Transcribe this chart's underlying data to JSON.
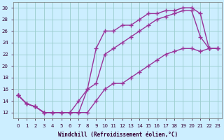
{
  "xlabel": "Windchill (Refroidissement éolien,°C)",
  "xlim": [
    -0.5,
    23.5
  ],
  "ylim": [
    11,
    31
  ],
  "yticks": [
    12,
    14,
    16,
    18,
    20,
    22,
    24,
    26,
    28,
    30
  ],
  "xticks": [
    0,
    1,
    2,
    3,
    4,
    5,
    6,
    7,
    8,
    9,
    10,
    11,
    12,
    13,
    14,
    15,
    16,
    17,
    18,
    19,
    20,
    21,
    22,
    23
  ],
  "bg_color": "#cceeff",
  "grid_color": "#99cccc",
  "line_color": "#993399",
  "marker": "+",
  "marker_size": 4,
  "line_width": 1.0,
  "line1_x": [
    0,
    1,
    2,
    3,
    4,
    5,
    6,
    7,
    8,
    9,
    10,
    11,
    12,
    13,
    14,
    15,
    16,
    17,
    18,
    19,
    20,
    21,
    22,
    23
  ],
  "line1_y": [
    15,
    13.5,
    13,
    12,
    12,
    12,
    12,
    12,
    16,
    23,
    26,
    26,
    27,
    27,
    28,
    29,
    29,
    29.5,
    29.5,
    30,
    30,
    29,
    23,
    23
  ],
  "line2_x": [
    0,
    1,
    2,
    3,
    4,
    5,
    6,
    7,
    8,
    9,
    10,
    11,
    12,
    13,
    14,
    15,
    16,
    17,
    18,
    19,
    20,
    21,
    22,
    23
  ],
  "line2_y": [
    15,
    13.5,
    13,
    12,
    12,
    12,
    12,
    14,
    16,
    17,
    22,
    23,
    24,
    25,
    26,
    27,
    28,
    28.5,
    29,
    29.5,
    29.5,
    25,
    23,
    23
  ],
  "line3_x": [
    0,
    1,
    2,
    3,
    4,
    5,
    6,
    7,
    8,
    9,
    10,
    11,
    12,
    13,
    14,
    15,
    16,
    17,
    18,
    19,
    20,
    21,
    22,
    23
  ],
  "line3_y": [
    15,
    13.5,
    13,
    12,
    12,
    12,
    12,
    12,
    12,
    14,
    16,
    17,
    17,
    18,
    19,
    20,
    21,
    22,
    22.5,
    23,
    23,
    22.5,
    23,
    23
  ]
}
